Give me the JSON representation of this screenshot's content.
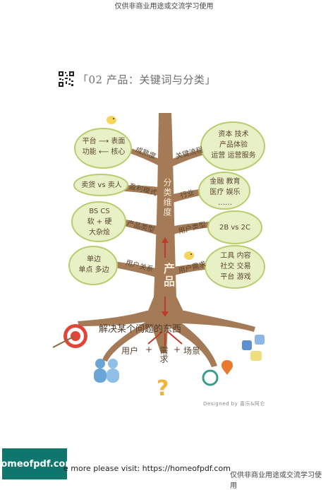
{
  "header": {
    "watermark": "仅供非商业用途或交流学习使用"
  },
  "title": {
    "text": "「02 产品：关键词与分类」"
  },
  "trunk": {
    "category_label": "分类维度",
    "product_label": "产品"
  },
  "branches": {
    "left": [
      "成熟度",
      "盈利模式",
      "产品类型",
      "用户关系"
    ],
    "right": [
      "关键流程",
      "行业",
      "用户类型",
      "用户需求"
    ]
  },
  "leaves_left": [
    {
      "lines": [
        "平台 ⟶ 表面",
        "功能 ⟵ 核心"
      ]
    },
    {
      "lines": [
        "卖货 vs 卖人"
      ]
    },
    {
      "lines": [
        "BS  CS",
        "软 + 硬",
        "大杂烩"
      ]
    },
    {
      "lines": [
        "单边",
        "单点       多边"
      ]
    }
  ],
  "leaves_right": [
    {
      "lines": [
        "资本  技术",
        "产品体验",
        "运营   运营服务"
      ]
    },
    {
      "lines": [
        "金融  教育",
        "医疗  娱乐",
        "……"
      ]
    },
    {
      "lines": [
        "2B  vs  2C"
      ]
    },
    {
      "lines": [
        "工具  内容",
        "社交  交易",
        "平台  游戏"
      ]
    }
  ],
  "roots": {
    "problem": "解决某个问题的东西",
    "user": "用户",
    "need": "需求",
    "scene": "场景",
    "plus1": "+",
    "plus2": "+"
  },
  "credit": "Designed by 喜乐&阿仑",
  "footer": {
    "badge": "homeofpdf.com",
    "text": "e more please visit: https://homeofpdf.com",
    "note": "仅供非商业用途或交流学习使用"
  },
  "colors": {
    "trunk": "#a47b56",
    "leaf": "#e8f0c6",
    "leaf_border": "#b9cc6e",
    "arrow": "#c0392b"
  }
}
